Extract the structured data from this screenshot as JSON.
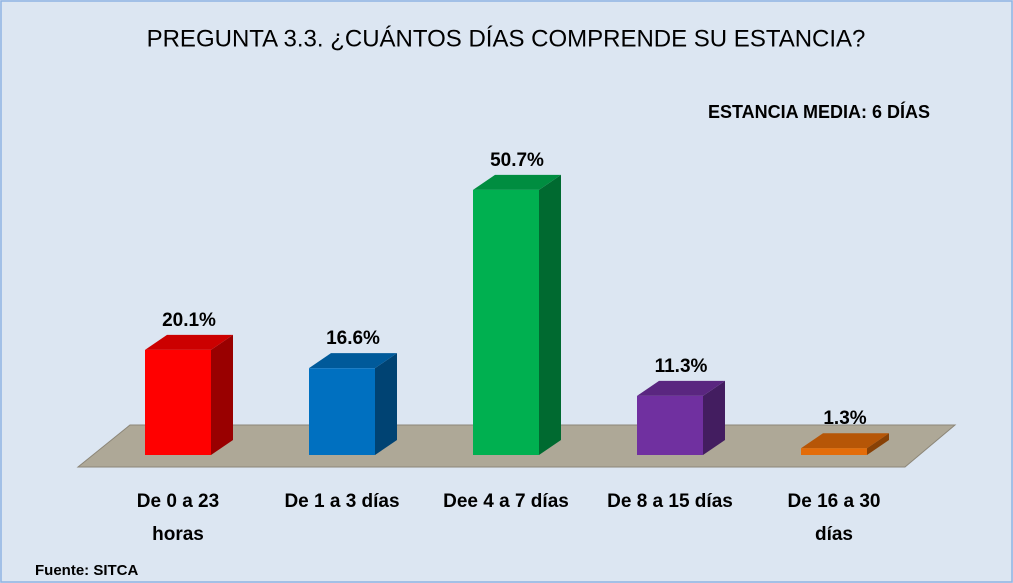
{
  "chart_data": {
    "type": "bar3d",
    "title": "PREGUNTA 3.3. ¿CUÁNTOS DÍAS COMPRENDE SU ESTANCIA?",
    "annotation": "ESTANCIA MEDIA: 6 DÍAS",
    "source": "Fuente: SITCA",
    "categories": [
      "De 0 a 23 horas",
      "De 1 a 3 días",
      "Dee 4 a 7 días",
      "De 8 a 15 días",
      "De 16 a 30 días"
    ],
    "values": [
      20.1,
      16.6,
      50.7,
      11.3,
      1.3
    ],
    "value_labels": [
      "20.1%",
      "16.6%",
      "50.7%",
      "11.3%",
      "1.3%"
    ],
    "colors": [
      "#ff0000",
      "#0070c0",
      "#00b050",
      "#7030a0",
      "#e36c09"
    ]
  }
}
